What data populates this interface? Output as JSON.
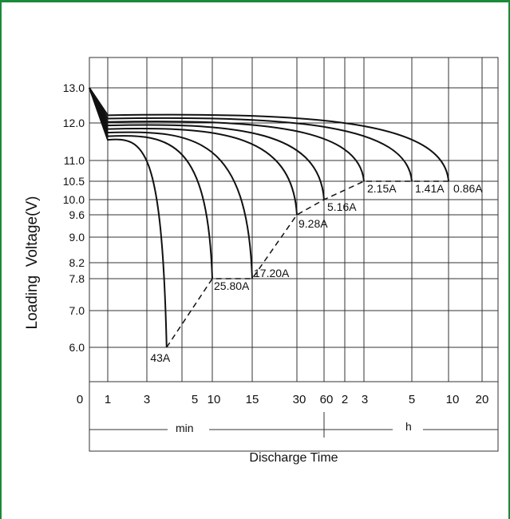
{
  "colors": {
    "frame": "#1b8a3a",
    "grid": "#333333",
    "curve": "#111111",
    "background": "#ffffff"
  },
  "chart_data": {
    "type": "line",
    "xlabel": "Discharge Time",
    "ylabel": "Loading  Voltage(V)",
    "x_units": [
      "min",
      "h"
    ],
    "x_ticks": [
      "0",
      "1",
      "3",
      "5",
      "10",
      "15",
      "30",
      "60",
      "2",
      "3",
      "5",
      "10",
      "20"
    ],
    "y_ticks": [
      "13.0",
      "12.0",
      "11.0",
      "10.5",
      "10.0",
      "9.6",
      "9.0",
      "8.2",
      "7.8",
      "7.0",
      "6.0"
    ],
    "y_tick_values": [
      13.0,
      12.0,
      11.0,
      10.5,
      10.0,
      9.6,
      9.0,
      8.2,
      7.8,
      7.0,
      6.0
    ],
    "ylim": [
      5.0,
      13.0
    ],
    "grid": true,
    "series": [
      {
        "name": "43A",
        "label": "43A",
        "end_minutes": 4,
        "end_voltage": 6.0
      },
      {
        "name": "25.80A",
        "label": "25.80A",
        "end_minutes": 10,
        "end_voltage": 7.8
      },
      {
        "name": "17.20A",
        "label": "17.20A",
        "end_minutes": 15,
        "end_voltage": 7.8
      },
      {
        "name": "9.28A",
        "label": "9.28A",
        "end_minutes": 30,
        "end_voltage": 9.6
      },
      {
        "name": "5.16A",
        "label": "5.16A",
        "end_minutes": 60,
        "end_voltage": 10.0
      },
      {
        "name": "2.15A",
        "label": "2.15A",
        "end_minutes": 180,
        "end_voltage": 10.5
      },
      {
        "name": "1.41A",
        "label": "1.41A",
        "end_minutes": 300,
        "end_voltage": 10.5
      },
      {
        "name": "0.86A",
        "label": "0.86A",
        "end_minutes": 600,
        "end_voltage": 10.5
      }
    ]
  }
}
